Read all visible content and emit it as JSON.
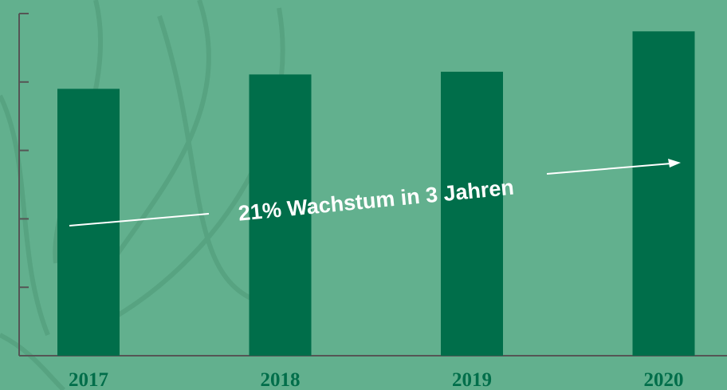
{
  "chart_data": {
    "type": "bar",
    "categories": [
      "2017",
      "2018",
      "2019",
      "2020"
    ],
    "values": [
      3.9,
      4.11,
      4.15,
      4.74
    ],
    "color": "#006e4a",
    "ylim": [
      0,
      5
    ],
    "yticks": [
      0,
      1,
      2,
      3,
      4,
      5
    ],
    "annotation": "21% Wachstum in 3 Jahren"
  }
}
